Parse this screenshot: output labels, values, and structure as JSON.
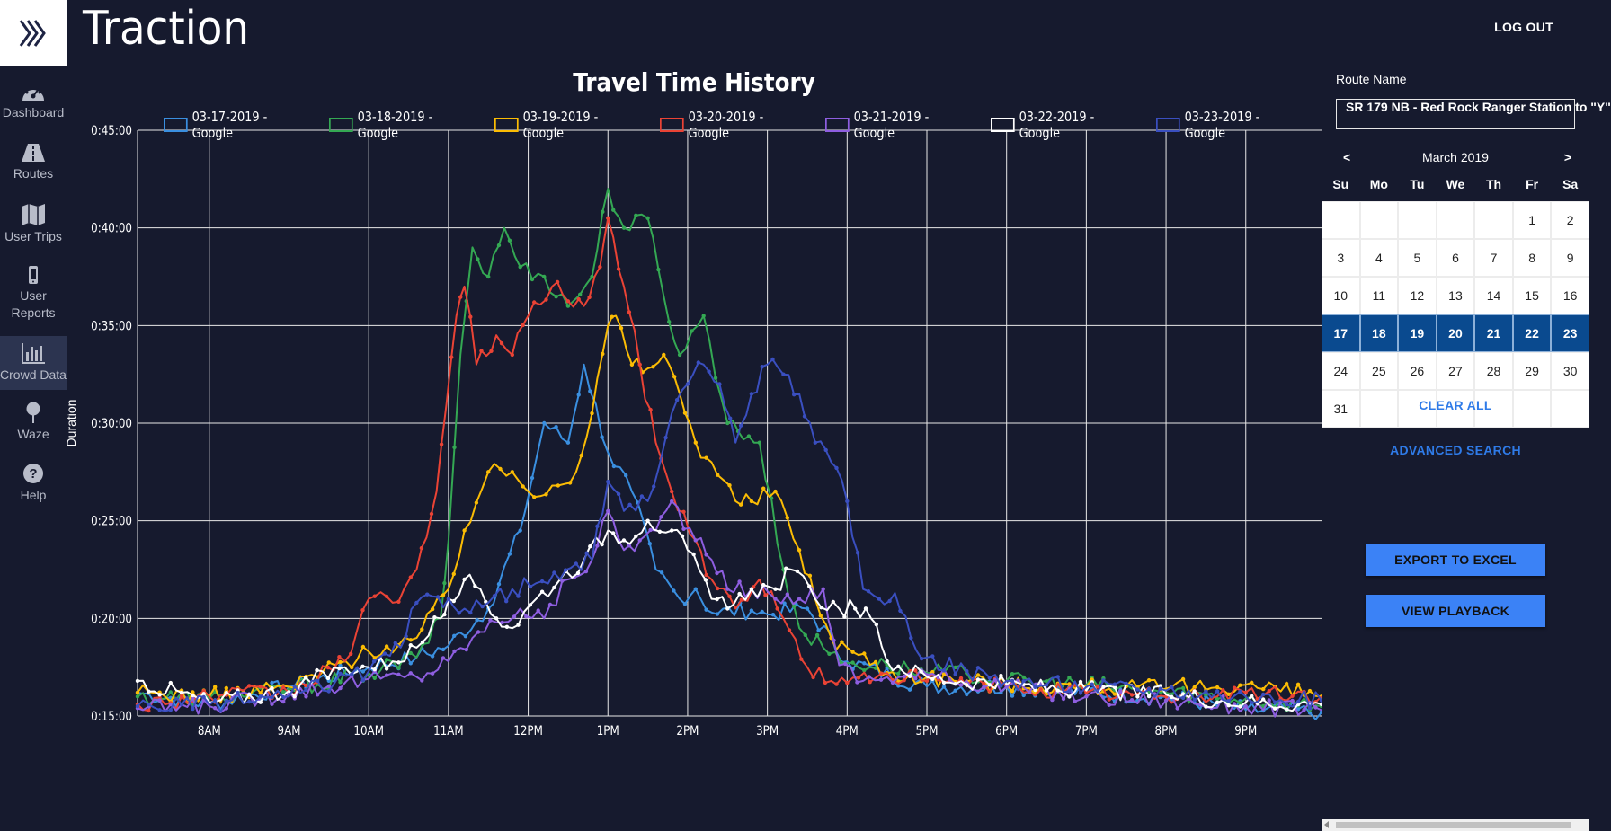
{
  "app": {
    "title": "Traction",
    "logout_label": "LOG OUT"
  },
  "sidebar": {
    "items": [
      {
        "label": "Dashboard",
        "icon": "dashboard-gauge-icon"
      },
      {
        "label": "Routes",
        "icon": "road-icon"
      },
      {
        "label": "User Trips",
        "icon": "map-icon"
      },
      {
        "label": "User Reports",
        "icon": "mobile-phone-icon"
      },
      {
        "label": "Crowd Data",
        "icon": "bar-chart-icon",
        "active": true
      },
      {
        "label": "Waze",
        "icon": "map-pin-icon"
      },
      {
        "label": "Help",
        "icon": "help-circle-icon"
      }
    ]
  },
  "chart_data": {
    "type": "line",
    "title": "Travel Time History",
    "xlabel": "",
    "ylabel": "Duration",
    "x_ticks": [
      "8AM",
      "9AM",
      "10AM",
      "11AM",
      "12PM",
      "1PM",
      "2PM",
      "3PM",
      "4PM",
      "5PM",
      "6PM",
      "7PM",
      "8PM",
      "9PM"
    ],
    "y_ticks": [
      "0:15:00",
      "0:20:00",
      "0:25:00",
      "0:30:00",
      "0:35:00",
      "0:40:00",
      "0:45:00"
    ],
    "xlim_hours": [
      7.1,
      21.95
    ],
    "ylim_minutes": [
      15,
      45
    ],
    "grid": true,
    "legend_position": "top",
    "series": [
      {
        "name": "03-17-2019 - Google",
        "color": "#3a8fe0",
        "points": [
          [
            7.1,
            16.2
          ],
          [
            8,
            15.6
          ],
          [
            9,
            16.5
          ],
          [
            10,
            17.5
          ],
          [
            10.6,
            18.0
          ],
          [
            11,
            18.6
          ],
          [
            11.5,
            20.5
          ],
          [
            11.9,
            24.5
          ],
          [
            12.2,
            30.0
          ],
          [
            12.5,
            29.0
          ],
          [
            12.7,
            33.0
          ],
          [
            13,
            28.5
          ],
          [
            13.3,
            26.5
          ],
          [
            13.6,
            22.5
          ],
          [
            13.9,
            21.0
          ],
          [
            14.1,
            21.5
          ],
          [
            14.3,
            20.3
          ],
          [
            14.8,
            20.4
          ],
          [
            15,
            20.2
          ],
          [
            15.5,
            20.5
          ],
          [
            16,
            17.8
          ],
          [
            17,
            16.5
          ],
          [
            18,
            16.5
          ],
          [
            19,
            16.2
          ],
          [
            20,
            16.0
          ],
          [
            21,
            15.3
          ],
          [
            21.95,
            15.2
          ]
        ]
      },
      {
        "name": "03-18-2019 - Google",
        "color": "#34a853",
        "points": [
          [
            7.1,
            16.0
          ],
          [
            8,
            15.9
          ],
          [
            9,
            16.4
          ],
          [
            10,
            17.2
          ],
          [
            10.6,
            18.0
          ],
          [
            10.9,
            20.0
          ],
          [
            11,
            24.0
          ],
          [
            11.15,
            33.5
          ],
          [
            11.3,
            39.0
          ],
          [
            11.5,
            37.5
          ],
          [
            11.7,
            40.0
          ],
          [
            11.9,
            38.0
          ],
          [
            12.2,
            37.5
          ],
          [
            12.5,
            36.0
          ],
          [
            12.8,
            37.5
          ],
          [
            13,
            42.0
          ],
          [
            13.2,
            40.0
          ],
          [
            13.5,
            40.5
          ],
          [
            13.7,
            36.5
          ],
          [
            13.9,
            33.5
          ],
          [
            14.2,
            35.5
          ],
          [
            14.5,
            30.0
          ],
          [
            14.9,
            29.0
          ],
          [
            15.2,
            22.5
          ],
          [
            15.4,
            19.5
          ],
          [
            15.7,
            18.5
          ],
          [
            16,
            17.7
          ],
          [
            16.5,
            17.6
          ],
          [
            17,
            17.2
          ],
          [
            17.5,
            17.2
          ],
          [
            18,
            16.8
          ],
          [
            19,
            16.6
          ],
          [
            20,
            16.2
          ],
          [
            21,
            15.9
          ],
          [
            21.95,
            15.5
          ]
        ]
      },
      {
        "name": "03-19-2019 - Google",
        "color": "#fbbc04",
        "points": [
          [
            7.1,
            16.2
          ],
          [
            8,
            16.0
          ],
          [
            9,
            16.5
          ],
          [
            10,
            18.3
          ],
          [
            10.6,
            19.0
          ],
          [
            11,
            21.5
          ],
          [
            11.2,
            24.5
          ],
          [
            11.5,
            27.5
          ],
          [
            11.8,
            27.5
          ],
          [
            12,
            26.5
          ],
          [
            12.3,
            26.8
          ],
          [
            12.6,
            27.5
          ],
          [
            12.8,
            30.5
          ],
          [
            13,
            35.0
          ],
          [
            13.1,
            35.5
          ],
          [
            13.3,
            33.0
          ],
          [
            13.5,
            32.8
          ],
          [
            13.7,
            33.5
          ],
          [
            13.9,
            31.5
          ],
          [
            14.1,
            29.0
          ],
          [
            14.3,
            28.0
          ],
          [
            14.6,
            26.0
          ],
          [
            14.8,
            26.0
          ],
          [
            15.1,
            26.5
          ],
          [
            15.4,
            23.5
          ],
          [
            15.6,
            21.0
          ],
          [
            15.8,
            19.0
          ],
          [
            16,
            18.5
          ],
          [
            16.5,
            17.2
          ],
          [
            17,
            17.0
          ],
          [
            18,
            16.6
          ],
          [
            19,
            16.5
          ],
          [
            20,
            16.4
          ],
          [
            21,
            16.6
          ],
          [
            21.95,
            16.0
          ]
        ]
      },
      {
        "name": "03-20-2019 - Google",
        "color": "#ea4335",
        "points": [
          [
            7.1,
            15.6
          ],
          [
            8,
            16.0
          ],
          [
            9,
            16.2
          ],
          [
            9.7,
            17.8
          ],
          [
            10,
            21.0
          ],
          [
            10.3,
            20.8
          ],
          [
            10.6,
            22.5
          ],
          [
            10.85,
            26.5
          ],
          [
            11.1,
            35.5
          ],
          [
            11.2,
            37.0
          ],
          [
            11.35,
            33.0
          ],
          [
            11.6,
            34.5
          ],
          [
            11.8,
            33.5
          ],
          [
            12,
            35.5
          ],
          [
            12.3,
            37.0
          ],
          [
            12.7,
            36.0
          ],
          [
            12.9,
            38.0
          ],
          [
            13,
            40.5
          ],
          [
            13.2,
            37.0
          ],
          [
            13.4,
            33.0
          ],
          [
            13.6,
            29.0
          ],
          [
            13.8,
            26.5
          ],
          [
            14.1,
            24.0
          ],
          [
            14.3,
            22.0
          ],
          [
            14.6,
            20.5
          ],
          [
            14.9,
            22.0
          ],
          [
            15.2,
            20.0
          ],
          [
            15.5,
            17.5
          ],
          [
            15.8,
            16.8
          ],
          [
            16,
            16.7
          ],
          [
            16.5,
            17.2
          ],
          [
            17,
            16.8
          ],
          [
            18,
            16.5
          ],
          [
            19,
            16.2
          ],
          [
            20,
            16.0
          ],
          [
            21,
            16.2
          ],
          [
            21.95,
            16.0
          ]
        ]
      },
      {
        "name": "03-21-2019 - Google",
        "color": "#8e5ee0",
        "points": [
          [
            7.1,
            15.4
          ],
          [
            8,
            15.5
          ],
          [
            9,
            16.2
          ],
          [
            10,
            16.9
          ],
          [
            10.6,
            17.0
          ],
          [
            11,
            17.8
          ],
          [
            11.3,
            19.0
          ],
          [
            11.6,
            19.8
          ],
          [
            11.9,
            20.5
          ],
          [
            12.2,
            20.0
          ],
          [
            12.5,
            22.0
          ],
          [
            12.8,
            23.0
          ],
          [
            13,
            25.5
          ],
          [
            13.2,
            23.5
          ],
          [
            13.4,
            24.0
          ],
          [
            13.6,
            24.5
          ],
          [
            13.8,
            26.0
          ],
          [
            14.1,
            24.0
          ],
          [
            14.3,
            23.0
          ],
          [
            14.5,
            21.5
          ],
          [
            14.8,
            21.5
          ],
          [
            15.1,
            21.0
          ],
          [
            15.4,
            21.0
          ],
          [
            15.7,
            21.5
          ],
          [
            15.9,
            17.6
          ],
          [
            16.2,
            16.8
          ],
          [
            16.5,
            17.0
          ],
          [
            17,
            17.1
          ],
          [
            18,
            16.5
          ],
          [
            19,
            16.0
          ],
          [
            20,
            15.8
          ],
          [
            21,
            15.5
          ],
          [
            21.95,
            15.3
          ]
        ]
      },
      {
        "name": "03-22-2019 - Google",
        "color": "#ffffff",
        "points": [
          [
            7.1,
            16.8
          ],
          [
            8,
            15.7
          ],
          [
            9,
            16.3
          ],
          [
            9.7,
            17.5
          ],
          [
            10,
            17.5
          ],
          [
            10.3,
            17.8
          ],
          [
            10.6,
            18.5
          ],
          [
            10.9,
            20.0
          ],
          [
            11,
            21.0
          ],
          [
            11.2,
            22.0
          ],
          [
            11.4,
            21.5
          ],
          [
            11.6,
            20.0
          ],
          [
            11.8,
            19.5
          ],
          [
            12.1,
            21.0
          ],
          [
            12.4,
            22.0
          ],
          [
            12.7,
            23.0
          ],
          [
            13,
            24.5
          ],
          [
            13.2,
            24.0
          ],
          [
            13.5,
            25.0
          ],
          [
            13.8,
            24.5
          ],
          [
            14,
            23.5
          ],
          [
            14.3,
            21.0
          ],
          [
            14.5,
            20.5
          ],
          [
            14.8,
            21.5
          ],
          [
            15.1,
            21.5
          ],
          [
            15.3,
            22.5
          ],
          [
            15.6,
            21.0
          ],
          [
            15.9,
            20.5
          ],
          [
            16.1,
            20.5
          ],
          [
            16.3,
            20.0
          ],
          [
            16.5,
            17.8
          ],
          [
            17,
            17.0
          ],
          [
            18,
            16.6
          ],
          [
            19,
            16.3
          ],
          [
            20,
            16.1
          ],
          [
            21,
            15.7
          ],
          [
            21.95,
            15.6
          ]
        ]
      },
      {
        "name": "03-23-2019 - Google",
        "color": "#3a4fc0",
        "points": [
          [
            7.1,
            15.5
          ],
          [
            8,
            15.6
          ],
          [
            9,
            16.0
          ],
          [
            10,
            17.3
          ],
          [
            10.4,
            18.5
          ],
          [
            10.6,
            20.8
          ],
          [
            11,
            21.0
          ],
          [
            11.2,
            20.5
          ],
          [
            11.5,
            20.8
          ],
          [
            11.8,
            21.5
          ],
          [
            12.1,
            21.8
          ],
          [
            12.4,
            22.0
          ],
          [
            12.6,
            22.8
          ],
          [
            12.8,
            23.0
          ],
          [
            13,
            27.0
          ],
          [
            13.2,
            25.5
          ],
          [
            13.5,
            26.0
          ],
          [
            13.8,
            30.5
          ],
          [
            14,
            32.0
          ],
          [
            14.2,
            33.0
          ],
          [
            14.4,
            32.0
          ],
          [
            14.6,
            29.0
          ],
          [
            14.8,
            31.5
          ],
          [
            15,
            33.0
          ],
          [
            15.2,
            32.5
          ],
          [
            15.4,
            31.5
          ],
          [
            15.6,
            29.0
          ],
          [
            15.8,
            28.0
          ],
          [
            16,
            26.0
          ],
          [
            16.2,
            21.5
          ],
          [
            16.4,
            21.0
          ],
          [
            16.6,
            21.3
          ],
          [
            16.8,
            19.0
          ],
          [
            17,
            18.0
          ],
          [
            17.5,
            17.3
          ],
          [
            18,
            16.8
          ],
          [
            19,
            16.5
          ],
          [
            20,
            16.3
          ],
          [
            21,
            16.0
          ],
          [
            21.95,
            15.8
          ]
        ]
      }
    ]
  },
  "panel": {
    "route_label": "Route Name",
    "route_value": "SR 179 NB - Red Rock Ranger Station to \"Y\"",
    "calendar": {
      "prev": "<",
      "next": ">",
      "month": "March 2019",
      "dows": [
        "Su",
        "Mo",
        "Tu",
        "We",
        "Th",
        "Fr",
        "Sa"
      ],
      "leading_blanks": 5,
      "days": 31,
      "selected": [
        17,
        18,
        19,
        20,
        21,
        22,
        23
      ]
    },
    "clear_all": "CLEAR ALL",
    "advanced_search": "ADVANCED SEARCH",
    "export_label": "EXPORT TO EXCEL",
    "playback_label": "VIEW PLAYBACK"
  }
}
